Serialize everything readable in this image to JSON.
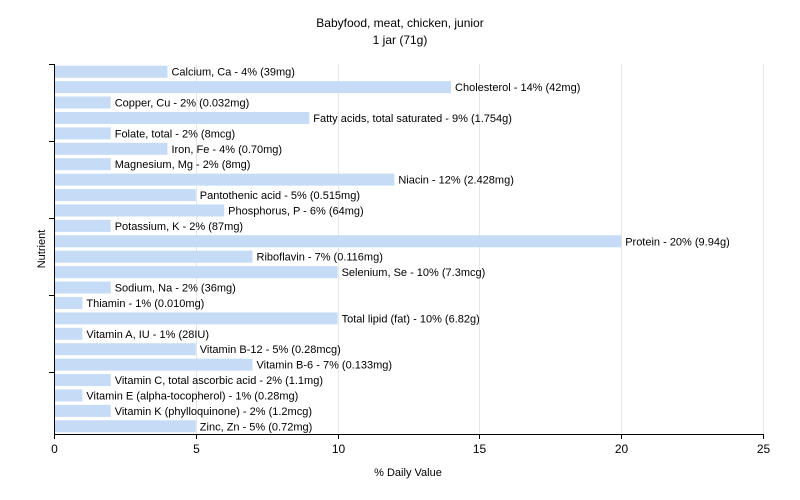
{
  "chart_data": {
    "type": "bar",
    "orientation": "horizontal",
    "title": "Babyfood, meat, chicken, junior",
    "subtitle": "1 jar (71g)",
    "xlabel": "% Daily Value",
    "ylabel": "Nutrient",
    "xlim": [
      0,
      25
    ],
    "xticks": [
      0,
      5,
      10,
      15,
      20,
      25
    ],
    "grid": true,
    "bar_color": "#c6dcf6",
    "grid_color": "#e6e6e6",
    "axis_color": "#000000",
    "categories": [
      "Calcium, Ca",
      "Cholesterol",
      "Copper, Cu",
      "Fatty acids, total saturated",
      "Folate, total",
      "Iron, Fe",
      "Magnesium, Mg",
      "Niacin",
      "Pantothenic acid",
      "Phosphorus, P",
      "Potassium, K",
      "Protein",
      "Riboflavin",
      "Selenium, Se",
      "Sodium, Na",
      "Thiamin",
      "Total lipid (fat)",
      "Vitamin A, IU",
      "Vitamin B-12",
      "Vitamin B-6",
      "Vitamin C, total ascorbic acid",
      "Vitamin E (alpha-tocopherol)",
      "Vitamin K (phylloquinone)",
      "Zinc, Zn"
    ],
    "values": [
      4,
      14,
      2,
      9,
      2,
      4,
      2,
      12,
      5,
      6,
      2,
      20,
      7,
      10,
      2,
      1,
      10,
      1,
      5,
      7,
      2,
      1,
      2,
      5
    ],
    "labels": [
      "Calcium, Ca - 4% (39mg)",
      "Cholesterol - 14% (42mg)",
      "Copper, Cu - 2% (0.032mg)",
      "Fatty acids, total saturated - 9% (1.754g)",
      "Folate, total - 2% (8mcg)",
      "Iron, Fe - 4% (0.70mg)",
      "Magnesium, Mg - 2% (8mg)",
      "Niacin - 12% (2.428mg)",
      "Pantothenic acid - 5% (0.515mg)",
      "Phosphorus, P - 6% (64mg)",
      "Potassium, K - 2% (87mg)",
      "Protein - 20% (9.94g)",
      "Riboflavin - 7% (0.116mg)",
      "Selenium, Se - 10% (7.3mcg)",
      "Sodium, Na - 2% (36mg)",
      "Thiamin - 1% (0.010mg)",
      "Total lipid (fat) - 10% (6.82g)",
      "Vitamin A, IU - 1% (28IU)",
      "Vitamin B-12 - 5% (0.28mcg)",
      "Vitamin B-6 - 7% (0.133mg)",
      "Vitamin C, total ascorbic acid - 2% (1.1mg)",
      "Vitamin E (alpha-tocopherol) - 1% (0.28mg)",
      "Vitamin K (phylloquinone) - 2% (1.2mcg)",
      "Zinc, Zn - 5% (0.72mg)"
    ]
  }
}
